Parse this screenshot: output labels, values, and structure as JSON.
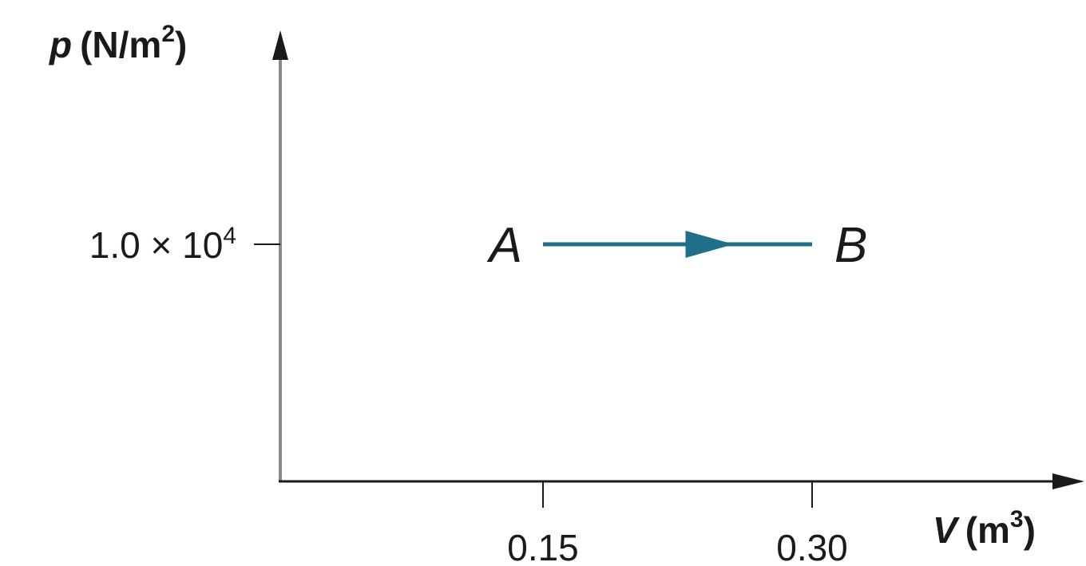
{
  "colors": {
    "axis_y": "#8a8a8a",
    "axis_x": "#1a1a1a",
    "path": "#1f6f8b",
    "text": "#1a1a1a"
  },
  "chart_data": {
    "type": "line",
    "title": "",
    "y_axis": {
      "symbol": "p",
      "unit_open": "(N/m",
      "unit_exp": "2",
      "unit_close": ")"
    },
    "x_axis": {
      "symbol": "V",
      "unit_open": "(m",
      "unit_exp": "3",
      "unit_close": ")"
    },
    "y_ticks": [
      {
        "value": 10000,
        "mantissa": "1.0 × 10",
        "exponent": "4"
      }
    ],
    "x_ticks": [
      {
        "value": 0.15,
        "label": "0.15"
      },
      {
        "value": 0.3,
        "label": "0.30"
      }
    ],
    "series": [
      {
        "points": [
          {
            "label": "A",
            "x": 0.15,
            "y": 10000
          },
          {
            "label": "B",
            "x": 0.3,
            "y": 10000
          }
        ],
        "direction": "A-to-B"
      }
    ],
    "grid": false,
    "legend": "none"
  }
}
